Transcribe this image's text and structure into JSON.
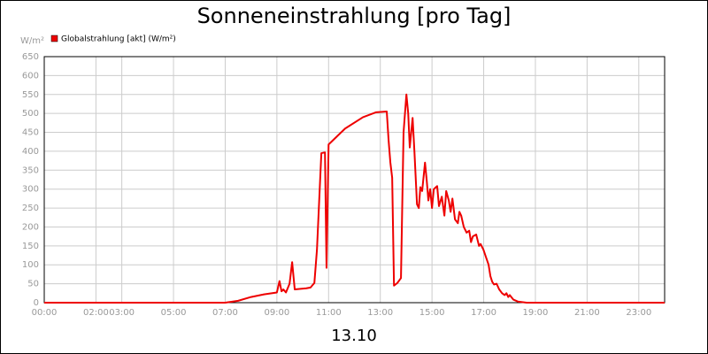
{
  "chart_data": {
    "type": "line",
    "title": "Sonneneinstrahlung [pro Tag]",
    "y_label": "W/m²",
    "x_label": "13.10",
    "xlim": [
      0,
      24
    ],
    "ylim": [
      0,
      650
    ],
    "xticks": [
      {
        "value": 0,
        "label": "00:00"
      },
      {
        "value": 2,
        "label": "02:00"
      },
      {
        "value": 3,
        "label": "03:00"
      },
      {
        "value": 5,
        "label": "05:00"
      },
      {
        "value": 7,
        "label": "07:00"
      },
      {
        "value": 9,
        "label": "09:00"
      },
      {
        "value": 11,
        "label": "11:00"
      },
      {
        "value": 13,
        "label": "13:00"
      },
      {
        "value": 15,
        "label": "15:00"
      },
      {
        "value": 17,
        "label": "17:00"
      },
      {
        "value": 19,
        "label": "19:00"
      },
      {
        "value": 21,
        "label": "21:00"
      },
      {
        "value": 23,
        "label": "23:00"
      }
    ],
    "yticks": [
      0,
      50,
      100,
      150,
      200,
      250,
      300,
      350,
      400,
      450,
      500,
      550,
      600,
      650
    ],
    "grid": true,
    "legend": "top-left",
    "x": [
      0,
      7.0,
      7.5,
      8.0,
      8.5,
      9.0,
      9.1,
      9.18,
      9.25,
      9.35,
      9.49,
      9.59,
      9.69,
      10.14,
      10.3,
      10.45,
      10.55,
      10.65,
      10.72,
      10.86,
      10.92,
      11.0,
      11.64,
      12.33,
      12.84,
      13.25,
      13.32,
      13.39,
      13.46,
      13.53,
      13.66,
      13.8,
      13.9,
      14.01,
      14.08,
      14.14,
      14.25,
      14.32,
      14.42,
      14.49,
      14.55,
      14.62,
      14.73,
      14.8,
      14.86,
      14.93,
      15.0,
      15.07,
      15.2,
      15.27,
      15.38,
      15.48,
      15.55,
      15.65,
      15.72,
      15.79,
      15.89,
      16.0,
      16.06,
      16.13,
      16.23,
      16.34,
      16.44,
      16.51,
      16.58,
      16.71,
      16.82,
      16.88,
      16.99,
      17.09,
      17.19,
      17.26,
      17.33,
      17.4,
      17.5,
      17.6,
      17.71,
      17.81,
      17.88,
      17.95,
      18.01,
      18.15,
      18.32,
      18.66,
      24
    ],
    "series": [
      {
        "name": "Globalstrahlung [akt] (W/m²)",
        "color": "#ee0000",
        "values": [
          0,
          0,
          5,
          15,
          22,
          27,
          57,
          30,
          35,
          27,
          50,
          107,
          35,
          38,
          40,
          52,
          140,
          290,
          395,
          397,
          92,
          418,
          460,
          490,
          503,
          505,
          430,
          370,
          330,
          45,
          52,
          65,
          450,
          550,
          500,
          410,
          488,
          400,
          260,
          250,
          305,
          295,
          370,
          320,
          270,
          300,
          250,
          300,
          308,
          255,
          280,
          230,
          295,
          270,
          240,
          275,
          220,
          210,
          240,
          230,
          200,
          185,
          190,
          160,
          175,
          180,
          150,
          155,
          140,
          120,
          100,
          70,
          55,
          48,
          50,
          35,
          25,
          20,
          25,
          15,
          20,
          8,
          3,
          0,
          0
        ]
      }
    ]
  }
}
